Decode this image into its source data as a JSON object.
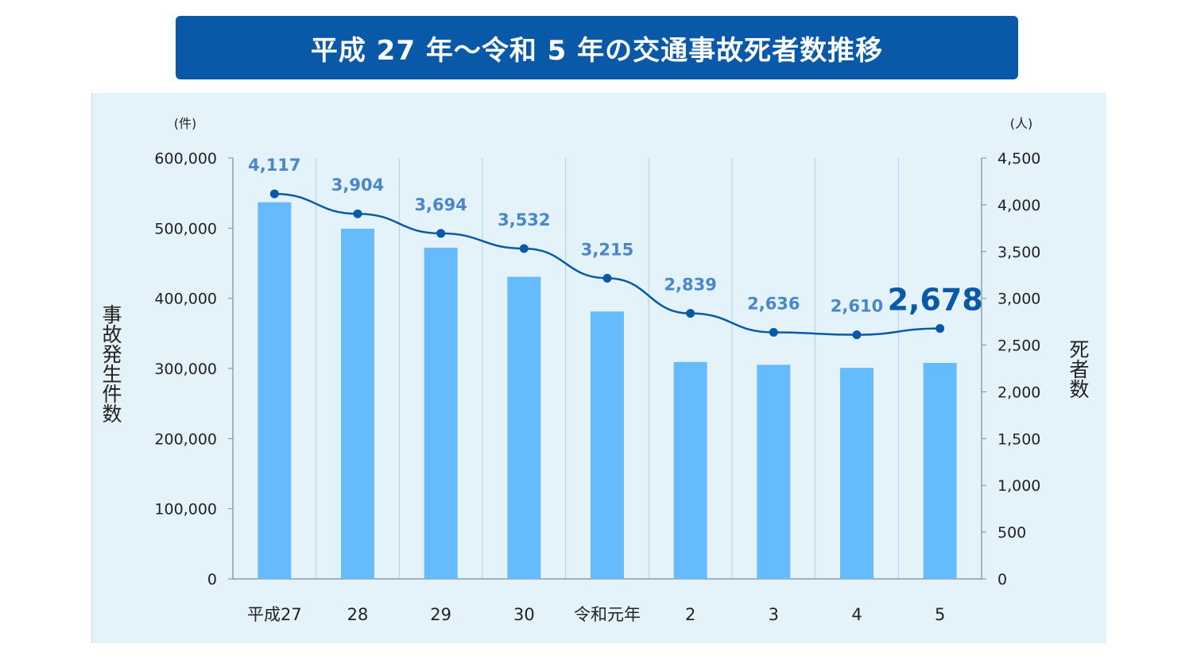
{
  "title": "平成 27 年～令和 5 年の交通事故死者数推移",
  "chart_data": {
    "type": "bar+line",
    "title": "平成 27 年～令和 5 年の交通事故死者数推移",
    "categories": [
      "平成27",
      "28",
      "29",
      "30",
      "令和元年",
      "2",
      "3",
      "4",
      "5"
    ],
    "series": [
      {
        "name": "事故発生件数",
        "type": "bar",
        "axis": "left",
        "values": [
          536899,
          499201,
          472165,
          430601,
          381237,
          309178,
          305196,
          300839,
          307911
        ]
      },
      {
        "name": "死者数",
        "type": "line",
        "axis": "right",
        "values": [
          4117,
          3904,
          3694,
          3532,
          3215,
          2839,
          2636,
          2610,
          2678
        ],
        "labels": [
          "4,117",
          "3,904",
          "3,694",
          "3,532",
          "3,215",
          "2,839",
          "2,636",
          "2,610",
          "2,678"
        ]
      }
    ],
    "left_axis": {
      "label": "事故発生件数",
      "unit": "(件)",
      "ylim": [
        0,
        600000
      ],
      "ticks": [
        "600,000",
        "500,000",
        "400,000",
        "300,000",
        "200,000",
        "100,000",
        "0"
      ]
    },
    "right_axis": {
      "label": "死者数",
      "unit": "(人)",
      "ylim": [
        0,
        4500
      ],
      "ticks": [
        "4,500",
        "4,000",
        "3,500",
        "3,000",
        "2,500",
        "2,000",
        "1,500",
        "1,000",
        "500",
        "0"
      ]
    },
    "highlight_index": 8
  },
  "colors": {
    "title_bg": "#0a59a8",
    "title_text": "#ffffff",
    "panel_bg": "#e4f3f9",
    "bar": "#66bbfc",
    "line": "#0a59a8",
    "data_label": "#4a86c9",
    "data_label_highlight": "#0a59a8",
    "gridline": "#a9d3ec",
    "axis": "#7a8b97"
  }
}
